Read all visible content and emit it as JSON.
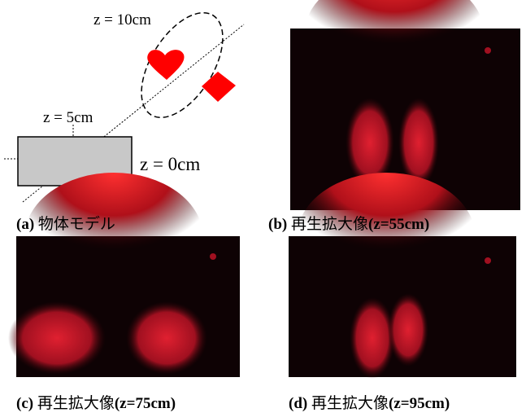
{
  "panels": [
    {
      "tag": "(a)",
      "caption": "物体モデル",
      "labels": [
        "z = 10cm",
        "z = 5cm",
        "z = 0cm"
      ]
    },
    {
      "tag": "(b)",
      "caption": "再生拡大像",
      "param": "(z=55cm)"
    },
    {
      "tag": "(c)",
      "caption": "再生拡大像",
      "param": "(z=75cm)"
    },
    {
      "tag": "(d)",
      "caption": "再生拡大像",
      "param": "(z=95cm)"
    }
  ]
}
